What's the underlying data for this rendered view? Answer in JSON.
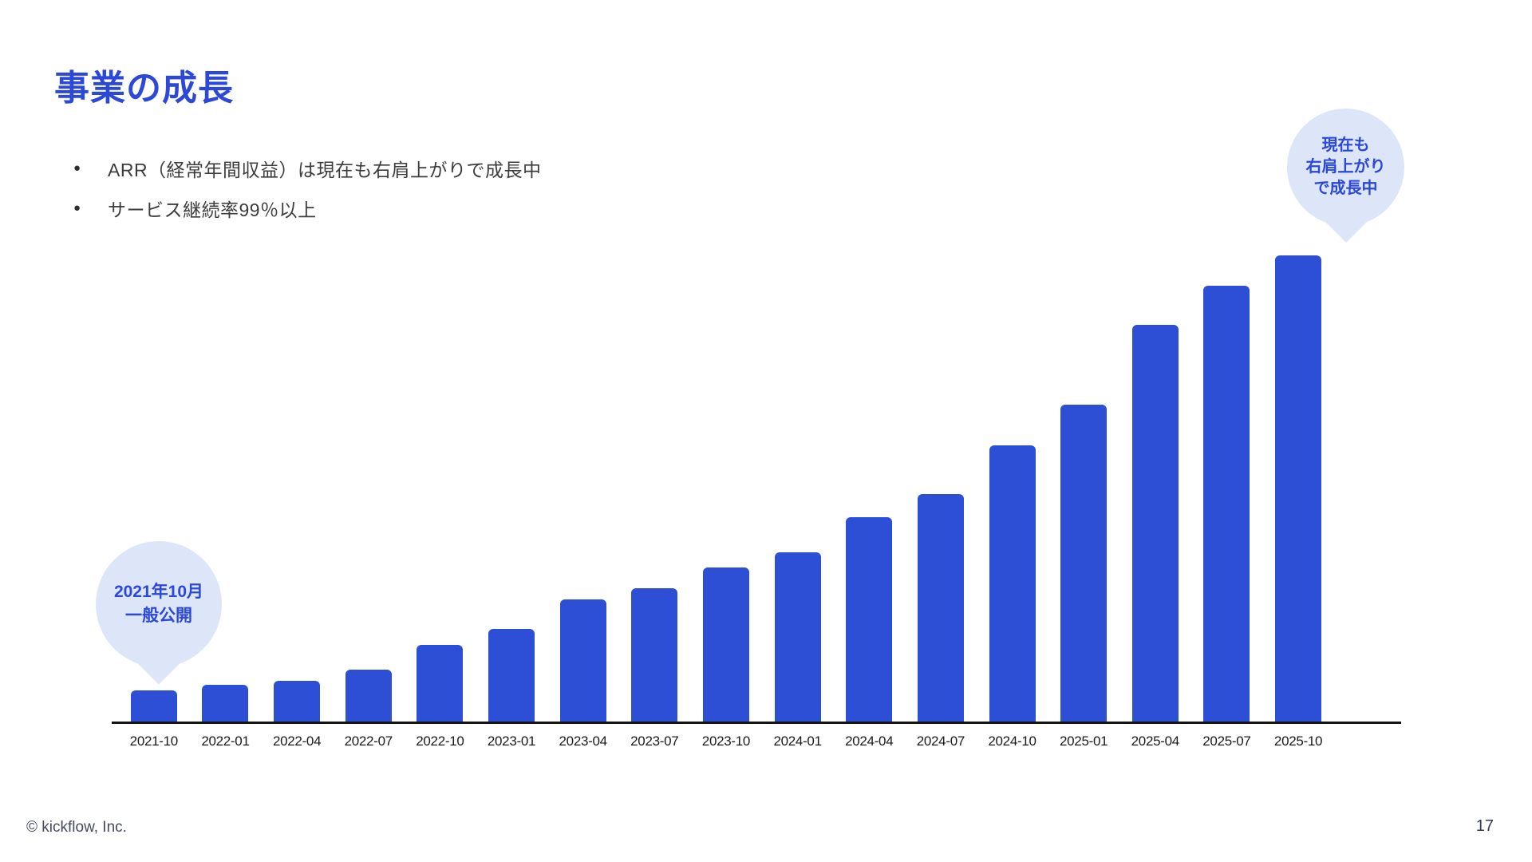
{
  "slide": {
    "title": "事業の成長",
    "bullets": [
      "ARR（経常年間収益）は現在も右肩上がりで成長中",
      "サービス継続率99％以上"
    ],
    "footer": {
      "copyright": "© kickflow, Inc.",
      "page_number": "17"
    }
  },
  "callouts": {
    "launch": {
      "lines": [
        "2021年10月",
        "一般公開"
      ]
    },
    "growth": {
      "lines": [
        "現在も",
        "右肩上がり",
        "で成長中"
      ]
    }
  },
  "colors": {
    "accent_blue": "#2b48d9",
    "bar_blue": "#2d4fd6",
    "pin_background": "#dde5f9",
    "body_text": "#3c3c3c",
    "axis": "#141414",
    "tick_text": "#1a1a1a",
    "footer_text": "#454b5e"
  },
  "chart_data": {
    "type": "bar",
    "title": "",
    "xlabel": "",
    "ylabel": "",
    "legend": "none",
    "grid": false,
    "y_axis_visible": false,
    "ylim": [
      0,
      105
    ],
    "units": "relative ARR (no y-axis shown; values normalized so 2025-10 = 100)",
    "categories": [
      "2021-10",
      "2022-01",
      "2022-04",
      "2022-07",
      "2022-10",
      "2023-01",
      "2023-04",
      "2023-07",
      "2023-10",
      "2024-01",
      "2024-04",
      "2024-07",
      "2024-10",
      "2025-01",
      "2025-04",
      "2025-07",
      "2025-10"
    ],
    "values": [
      6.8,
      8.0,
      8.9,
      11.3,
      16.6,
      20.0,
      26.3,
      28.7,
      33.2,
      36.4,
      43.9,
      48.9,
      59.3,
      68.0,
      85.1,
      93.5,
      100
    ]
  }
}
